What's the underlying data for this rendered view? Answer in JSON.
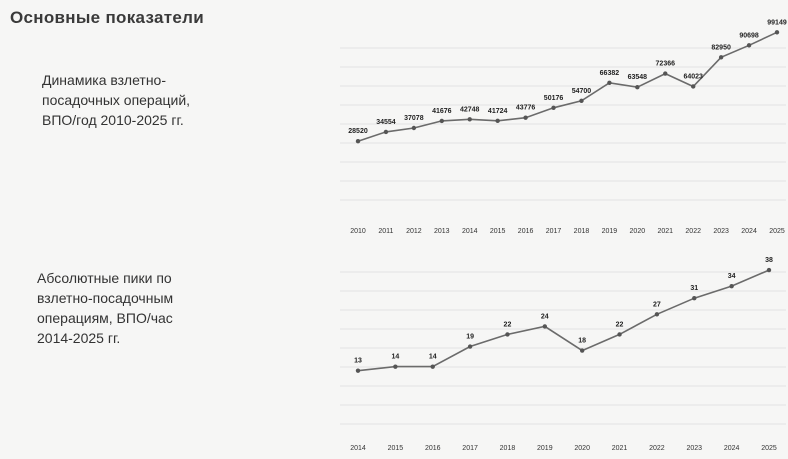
{
  "page": {
    "title": "Основные показатели"
  },
  "captions": [
    [
      "Динамика взлетно-",
      "посадочных операций,",
      "ВПО/год 2010-2025 гг."
    ],
    [
      "Абсолютные пики по",
      "взлетно-посадочным",
      "операциям, ВПО/час",
      "2014-2025 гг."
    ]
  ],
  "chart_data": [
    {
      "type": "line",
      "title": "",
      "xlabel": "",
      "ylabel": "",
      "categories": [
        "2010",
        "2011",
        "2012",
        "2013",
        "2014",
        "2015",
        "2016",
        "2017",
        "2018",
        "2019",
        "2020",
        "2021",
        "2022",
        "2023",
        "2024",
        "2025"
      ],
      "values": [
        28520,
        34554,
        37078,
        41676,
        42748,
        41724,
        43776,
        50176,
        54700,
        66382,
        63548,
        72366,
        64023,
        82950,
        90698,
        99149
      ],
      "data_labels": [
        "28520",
        "34554",
        "37078",
        "41676",
        "42748",
        "41724",
        "43776",
        "50176",
        "54700",
        "66382",
        "63548",
        "72366",
        "64023",
        "82950",
        "90698",
        "99149"
      ],
      "ylim": [
        -20000,
        100000
      ],
      "grid": true,
      "legend": "none"
    },
    {
      "type": "line",
      "title": "",
      "xlabel": "",
      "ylabel": "",
      "categories": [
        "2014",
        "2015",
        "2016",
        "2017",
        "2018",
        "2019",
        "2020",
        "2021",
        "2022",
        "2023",
        "2024",
        "2025"
      ],
      "values": [
        13,
        14,
        14,
        19,
        22,
        24,
        18,
        22,
        27,
        31,
        34,
        38
      ],
      "data_labels": [
        "13",
        "14",
        "14",
        "19",
        "22",
        "24",
        "18",
        "22",
        "27",
        "31",
        "34",
        "38"
      ],
      "ylim": [
        0,
        40
      ],
      "grid": true,
      "legend": "none"
    }
  ]
}
